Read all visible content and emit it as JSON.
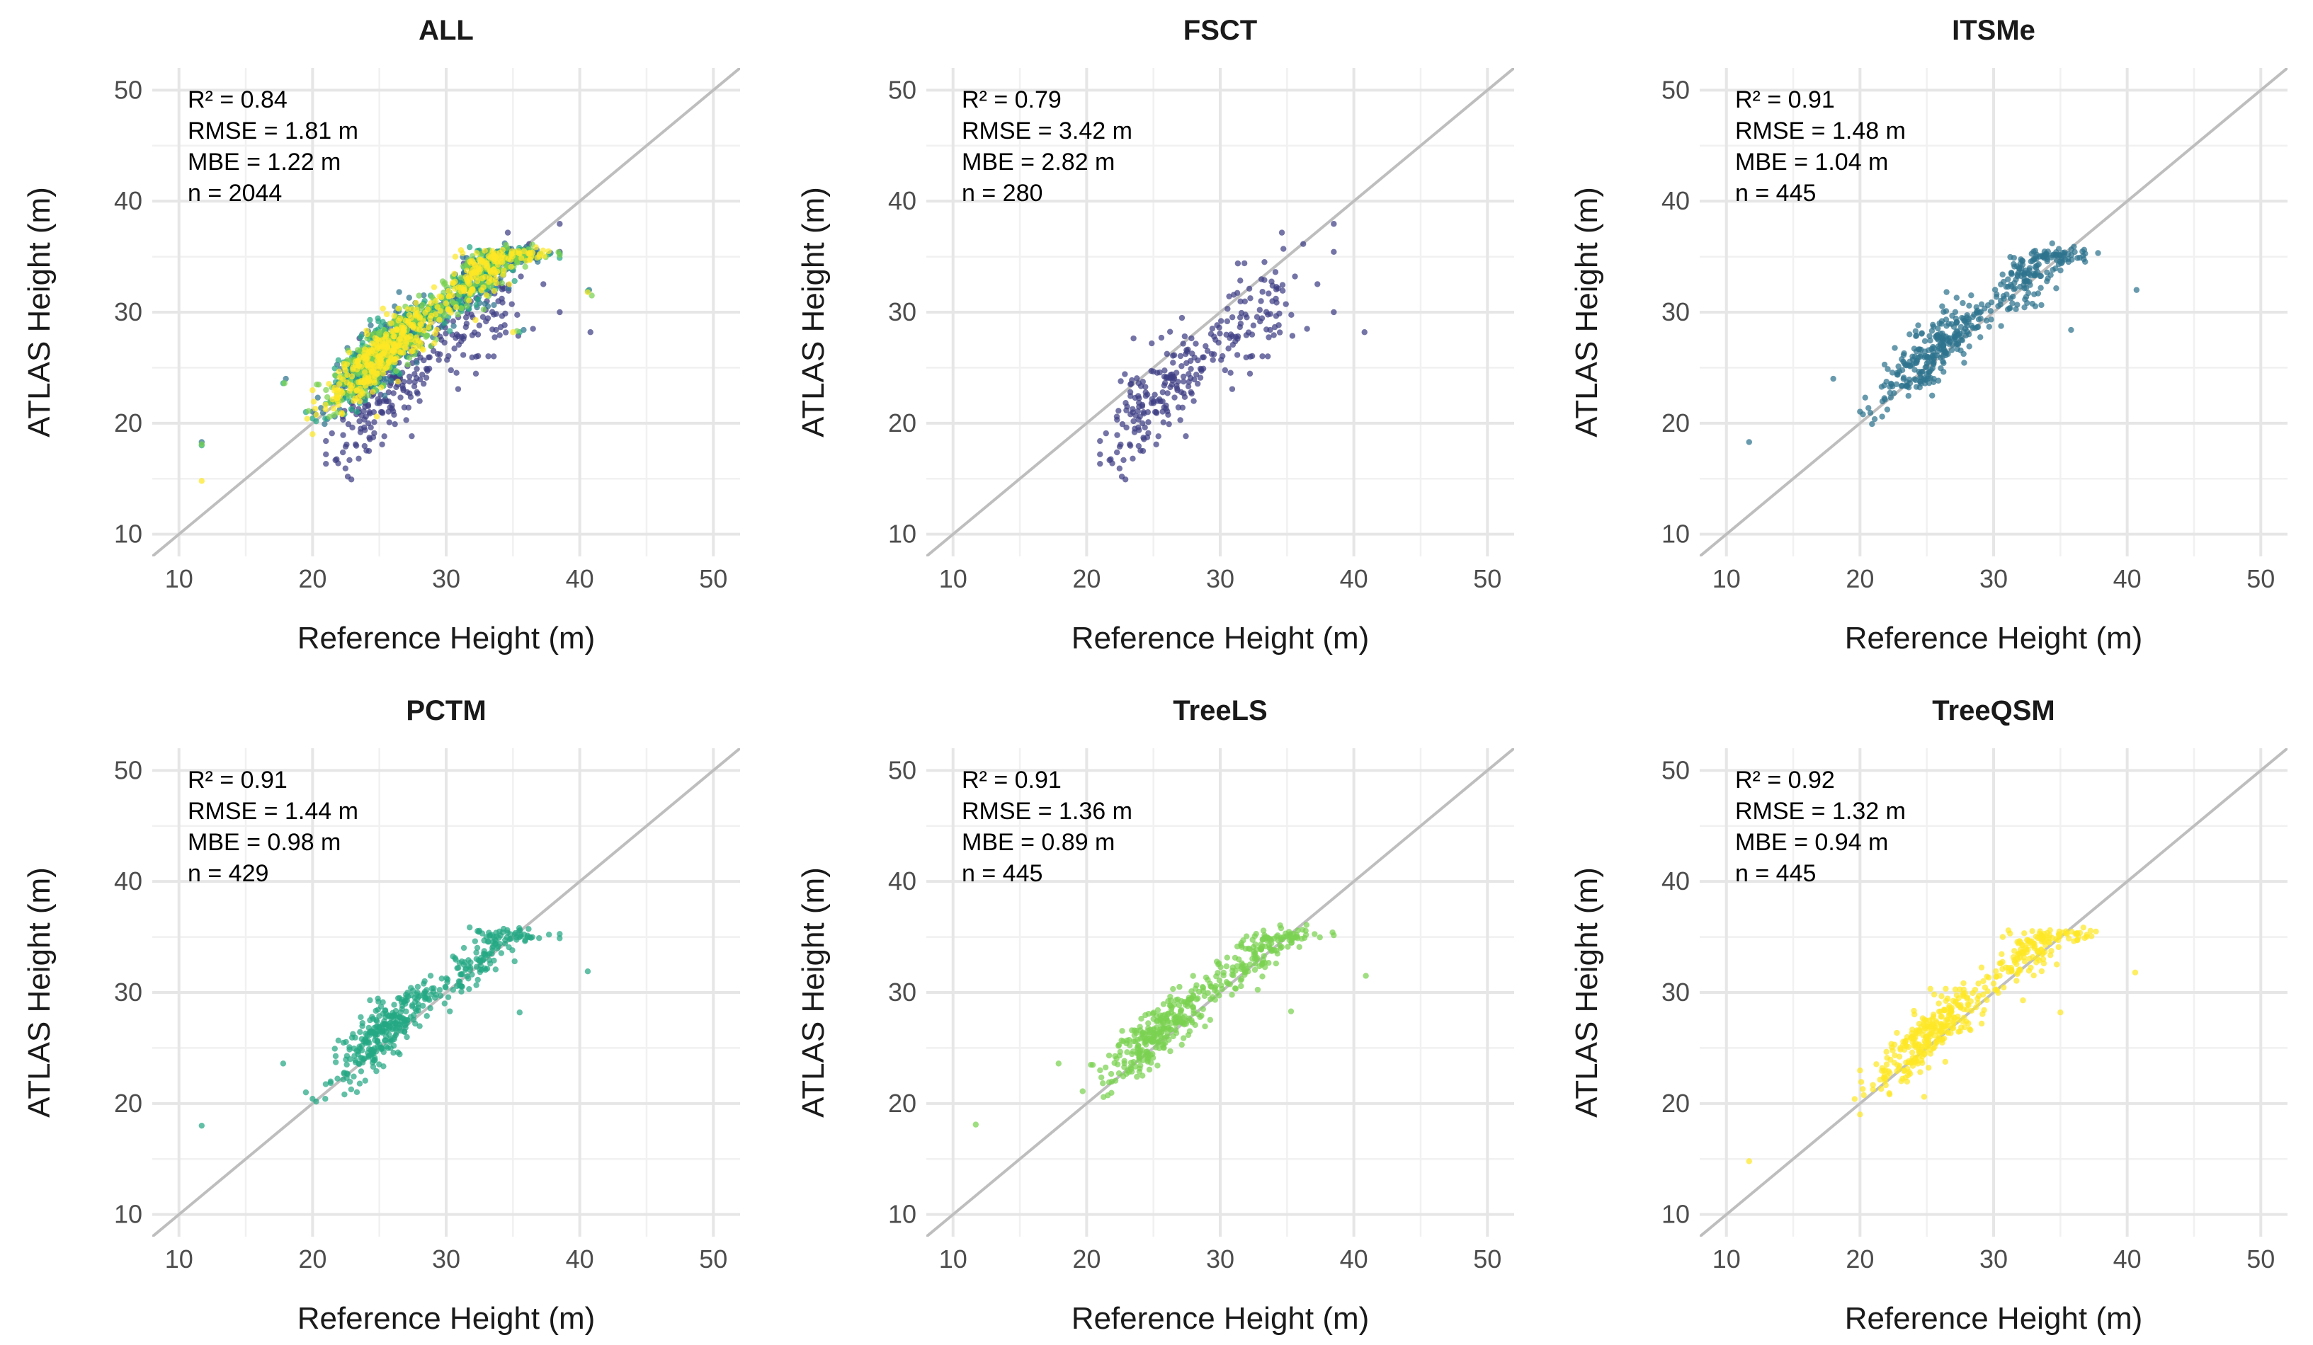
{
  "figure": {
    "xlabel": "Reference Height (m)",
    "ylabel": "ATLAS Height (m)"
  },
  "chart_data": [
    {
      "type": "scatter",
      "title": "ALL",
      "color": "#6b8b9a",
      "xlim": [
        8,
        52
      ],
      "ylim": [
        8,
        52
      ],
      "xticks": [
        10,
        20,
        30,
        40,
        50
      ],
      "yticks": [
        10,
        20,
        30,
        40,
        50
      ],
      "reference_line": "1:1",
      "grid": true,
      "n_points": 2044,
      "stats": [
        "R² = 0.84",
        "RMSE = 1.81 m",
        "MBE = 1.22 m",
        "n = 2044"
      ]
    },
    {
      "type": "scatter",
      "title": "FSCT",
      "color": "#3e3f85",
      "xlim": [
        8,
        52
      ],
      "ylim": [
        8,
        52
      ],
      "xticks": [
        10,
        20,
        30,
        40,
        50
      ],
      "yticks": [
        10,
        20,
        30,
        40,
        50
      ],
      "reference_line": "1:1",
      "grid": true,
      "n_points": 280,
      "stats": [
        "R² = 0.79",
        "RMSE = 3.42 m",
        "MBE = 2.82 m",
        "n = 280"
      ]
    },
    {
      "type": "scatter",
      "title": "ITSMe",
      "color": "#2e738e",
      "xlim": [
        8,
        52
      ],
      "ylim": [
        8,
        52
      ],
      "xticks": [
        10,
        20,
        30,
        40,
        50
      ],
      "yticks": [
        10,
        20,
        30,
        40,
        50
      ],
      "reference_line": "1:1",
      "grid": true,
      "n_points": 445,
      "stats": [
        "R² = 0.91",
        "RMSE = 1.48 m",
        "MBE = 1.04 m",
        "n = 445"
      ]
    },
    {
      "type": "scatter",
      "title": "PCTM",
      "color": "#24a884",
      "xlim": [
        8,
        52
      ],
      "ylim": [
        8,
        52
      ],
      "xticks": [
        10,
        20,
        30,
        40,
        50
      ],
      "yticks": [
        10,
        20,
        30,
        40,
        50
      ],
      "reference_line": "1:1",
      "grid": true,
      "n_points": 429,
      "stats": [
        "R² = 0.91",
        "RMSE = 1.44 m",
        "MBE = 0.98 m",
        "n = 429"
      ]
    },
    {
      "type": "scatter",
      "title": "TreeLS",
      "color": "#7ad151",
      "xlim": [
        8,
        52
      ],
      "ylim": [
        8,
        52
      ],
      "xticks": [
        10,
        20,
        30,
        40,
        50
      ],
      "yticks": [
        10,
        20,
        30,
        40,
        50
      ],
      "reference_line": "1:1",
      "grid": true,
      "n_points": 445,
      "stats": [
        "R² = 0.91",
        "RMSE = 1.36 m",
        "MBE = 0.89 m",
        "n = 445"
      ]
    },
    {
      "type": "scatter",
      "title": "TreeQSM",
      "color": "#fde725",
      "xlim": [
        8,
        52
      ],
      "ylim": [
        8,
        52
      ],
      "xticks": [
        10,
        20,
        30,
        40,
        50
      ],
      "yticks": [
        10,
        20,
        30,
        40,
        50
      ],
      "reference_line": "1:1",
      "grid": true,
      "n_points": 445,
      "stats": [
        "R² = 0.92",
        "RMSE = 1.32 m",
        "MBE = 0.94 m",
        "n = 445"
      ]
    }
  ]
}
